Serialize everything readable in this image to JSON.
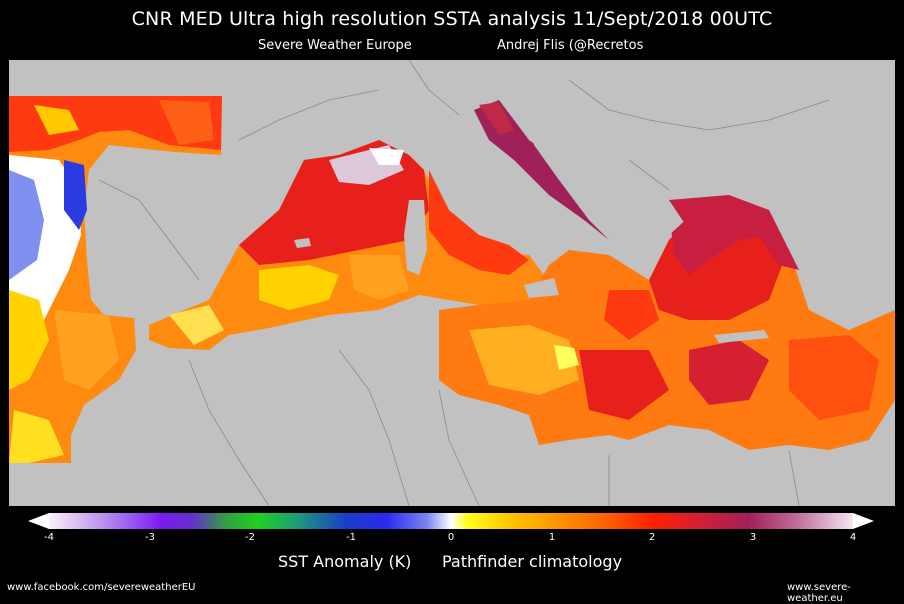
{
  "header": {
    "title": "CNR MED Ultra high resolution SSTA analysis 11/Sept/2018 00UTC",
    "source": "Severe Weather Europe",
    "author": "Andrej Flis (@Recretos"
  },
  "colorbar": {
    "ticks": [
      "-4",
      "-3",
      "-2",
      "-1",
      "0",
      "1",
      "2",
      "3",
      "4"
    ],
    "label": "SST Anomaly (K)",
    "climatology": "Pathfinder climatology"
  },
  "footer": {
    "left": "www.facebook.com/severeweatherEU",
    "right": "www.severe-weather.eu"
  },
  "colors": {
    "land": "#c1c1c1",
    "background": "#000000",
    "strong_warm": "#a0205a",
    "warm": "#e8201c",
    "moderate": "#ff7a10",
    "slight": "#ffc800",
    "cold": "#2a2af0"
  }
}
